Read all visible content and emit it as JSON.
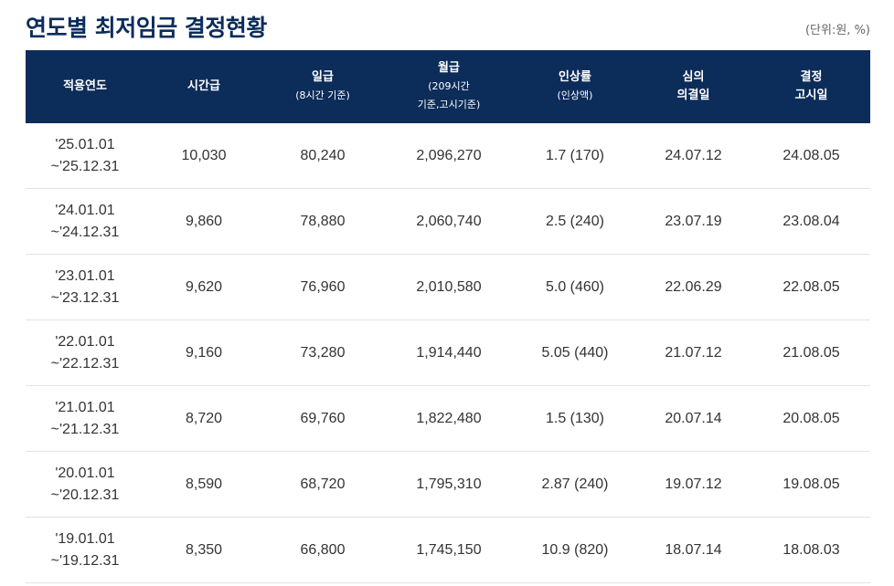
{
  "page": {
    "title": "연도별 최저임금 결정현황",
    "unit_note": "(단위:원, %)"
  },
  "table": {
    "headers": [
      {
        "lines": [
          "적용연도"
        ],
        "sub": []
      },
      {
        "lines": [
          "시간급"
        ],
        "sub": []
      },
      {
        "lines": [
          "일급"
        ],
        "sub": [
          "(8시간 기준)"
        ]
      },
      {
        "lines": [
          "월급"
        ],
        "sub": [
          "(209시간",
          "기준,고시기준)"
        ]
      },
      {
        "lines": [
          "인상률"
        ],
        "sub": [
          "(인상액)"
        ]
      },
      {
        "lines": [
          "심의",
          "의결일"
        ],
        "sub": []
      },
      {
        "lines": [
          "결정",
          "고시일"
        ],
        "sub": []
      }
    ],
    "rows": [
      {
        "period_start": "'25.01.01",
        "period_end": "~'25.12.31",
        "hourly": "10,030",
        "daily": "80,240",
        "monthly": "2,096,270",
        "increase": "1.7 (170)",
        "resolution_date": "24.07.12",
        "notice_date": "24.08.05"
      },
      {
        "period_start": "'24.01.01",
        "period_end": "~'24.12.31",
        "hourly": "9,860",
        "daily": "78,880",
        "monthly": "2,060,740",
        "increase": "2.5 (240)",
        "resolution_date": "23.07.19",
        "notice_date": "23.08.04"
      },
      {
        "period_start": "'23.01.01",
        "period_end": "~'23.12.31",
        "hourly": "9,620",
        "daily": "76,960",
        "monthly": "2,010,580",
        "increase": "5.0 (460)",
        "resolution_date": "22.06.29",
        "notice_date": "22.08.05"
      },
      {
        "period_start": "'22.01.01",
        "period_end": "~'22.12.31",
        "hourly": "9,160",
        "daily": "73,280",
        "monthly": "1,914,440",
        "increase": "5.05 (440)",
        "resolution_date": "21.07.12",
        "notice_date": "21.08.05"
      },
      {
        "period_start": "'21.01.01",
        "period_end": "~'21.12.31",
        "hourly": "8,720",
        "daily": "69,760",
        "monthly": "1,822,480",
        "increase": "1.5 (130)",
        "resolution_date": "20.07.14",
        "notice_date": "20.08.05"
      },
      {
        "period_start": "'20.01.01",
        "period_end": "~'20.12.31",
        "hourly": "8,590",
        "daily": "68,720",
        "monthly": "1,795,310",
        "increase": "2.87 (240)",
        "resolution_date": "19.07.12",
        "notice_date": "19.08.05"
      },
      {
        "period_start": "'19.01.01",
        "period_end": "~'19.12.31",
        "hourly": "8,350",
        "daily": "66,800",
        "monthly": "1,745,150",
        "increase": "10.9 (820)",
        "resolution_date": "18.07.14",
        "notice_date": "18.08.03"
      }
    ]
  },
  "colors": {
    "header_bg": "#0c2c5a",
    "title": "#0b2d5b",
    "row_border": "#e2e2e2"
  }
}
